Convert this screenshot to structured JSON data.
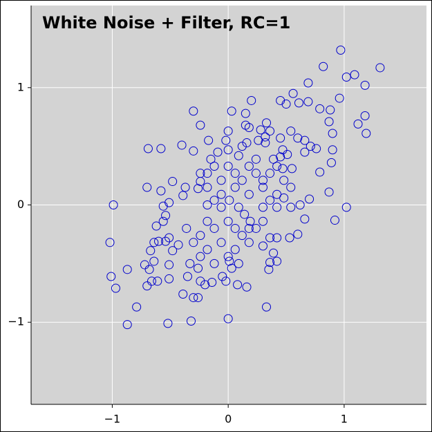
{
  "chart_data": {
    "type": "scatter",
    "title": "White Noise + Filter, RC=1",
    "color": "#0000cc",
    "grid": true,
    "xlim": [
      -1.7,
      1.71
    ],
    "ylim": [
      -1.7,
      1.7
    ],
    "xticks": [
      {
        "value": -1,
        "label": "−1"
      },
      0,
      1
    ],
    "yticks": [
      {
        "value": -1,
        "label": "−1"
      },
      0,
      1
    ],
    "x": [
      0.97,
      1.31,
      0.82,
      1.02,
      1.09,
      1.18,
      0.69,
      0.56,
      0.96,
      1.18,
      1.12,
      1.19,
      0.2,
      0.03,
      -0.3,
      0.15,
      -0.24,
      0.33,
      0.45,
      0.5,
      0.61,
      0.69,
      0.79,
      0.88,
      0.87,
      0.9,
      0.9,
      0.89,
      0.92,
      1.02,
      0.79,
      0.87,
      0.7,
      -0.69,
      -0.58,
      -0.99,
      -1.02,
      -1.01,
      -0.97,
      -0.87,
      -0.79,
      -0.87,
      -0.52,
      -0.32,
      0.0,
      0.33,
      -0.7,
      -0.4,
      -0.3,
      -0.17,
      -0.02,
      0.0,
      0.12,
      0.16,
      0.26,
      0.32,
      0.18,
      0.28,
      0.32,
      0.47,
      0.45,
      0.51,
      0.47,
      0.55,
      0.66,
      0.66,
      0.71,
      0.76,
      0.6,
      0.66,
      0.62,
      0.53,
      0.42,
      0.36,
      0.3,
      0.39,
      0.36,
      0.35,
      0.42,
      0.16,
      0.08,
      0.01,
      0.03,
      -0.02,
      -0.05,
      -0.14,
      -0.2,
      -0.24,
      -0.26,
      -0.35,
      -0.33,
      -0.7,
      -0.66,
      -0.61,
      -0.51,
      -0.68,
      -0.72,
      -0.64,
      -0.51,
      -0.39,
      -0.3,
      -0.26,
      -0.67,
      -0.64,
      -0.6,
      -0.54,
      -0.51,
      -0.43,
      -0.48,
      -0.62,
      -0.56,
      -0.54,
      -0.56,
      -0.51,
      -0.48,
      -0.58,
      -0.39,
      -0.37,
      -0.26,
      -0.24,
      -0.18,
      -0.12,
      -0.06,
      0.01,
      0.09,
      0.14,
      0.19,
      0.24,
      0.3,
      0.36,
      0.42,
      0.48,
      0.54,
      -0.18,
      -0.12,
      -0.24,
      -0.3,
      -0.36,
      0.0,
      0.06,
      0.12,
      0.18,
      -0.18,
      -0.12,
      -0.06,
      0.0,
      0.06,
      0.12,
      0.18,
      0.24,
      0.3,
      0.36,
      0.42,
      0.48,
      -0.18,
      -0.06,
      0.06,
      0.18,
      0.3,
      0.42,
      0.54,
      0.3,
      0.18,
      0.06,
      -0.06,
      -0.18,
      0.0,
      0.09,
      -0.12,
      -0.24,
      0.36,
      0.45,
      0.54,
      0.6,
      0.39,
      0.24,
      0.09,
      -0.09,
      -0.15,
      -0.24,
      0.0,
      0.15
    ],
    "values": [
      1.32,
      1.17,
      1.18,
      1.09,
      1.11,
      1.02,
      1.04,
      0.95,
      0.91,
      0.76,
      0.69,
      0.61,
      0.89,
      0.8,
      0.8,
      0.78,
      0.68,
      0.7,
      0.89,
      0.86,
      0.87,
      0.88,
      0.82,
      0.81,
      0.71,
      0.61,
      0.47,
      0.36,
      -0.13,
      -0.02,
      0.28,
      0.11,
      0.05,
      0.48,
      0.48,
      0.0,
      -0.32,
      -0.61,
      -0.71,
      -0.55,
      -0.87,
      -1.02,
      -1.01,
      -0.99,
      -0.97,
      -0.87,
      0.15,
      0.51,
      0.46,
      0.55,
      0.55,
      0.47,
      0.5,
      0.53,
      0.55,
      0.53,
      0.66,
      0.64,
      0.58,
      0.47,
      0.41,
      0.43,
      0.31,
      0.31,
      0.45,
      0.55,
      0.5,
      0.48,
      -0.25,
      -0.12,
      0.0,
      -0.28,
      -0.28,
      -0.28,
      -0.35,
      -0.41,
      -0.49,
      -0.55,
      -0.48,
      -0.7,
      -0.68,
      -0.48,
      -0.54,
      -0.65,
      -0.61,
      -0.66,
      -0.68,
      -0.65,
      -0.54,
      -0.61,
      -0.5,
      -0.69,
      -0.65,
      -0.65,
      -0.63,
      -0.55,
      -0.51,
      -0.48,
      -0.51,
      -0.76,
      -0.79,
      -0.79,
      -0.39,
      -0.32,
      -0.31,
      -0.31,
      -0.28,
      -0.34,
      -0.39,
      -0.18,
      -0.14,
      -0.09,
      -0.01,
      0.02,
      0.2,
      0.12,
      0.08,
      0.15,
      0.14,
      0.2,
      0.0,
      0.04,
      -0.02,
      0.04,
      -0.02,
      -0.08,
      -0.14,
      -0.2,
      -0.02,
      0.04,
      0.09,
      0.06,
      0.15,
      -0.14,
      -0.2,
      -0.26,
      -0.32,
      -0.2,
      -0.14,
      -0.2,
      -0.26,
      -0.2,
      0.27,
      0.33,
      0.21,
      0.33,
      0.27,
      0.21,
      0.33,
      0.27,
      0.21,
      0.27,
      0.33,
      0.21,
      0.15,
      0.09,
      0.15,
      0.09,
      0.15,
      -0.02,
      -0.02,
      -0.14,
      -0.32,
      -0.38,
      -0.32,
      -0.38,
      -0.44,
      -0.5,
      -0.5,
      -0.44,
      0.63,
      0.57,
      0.63,
      0.57,
      0.39,
      0.39,
      0.42,
      0.45,
      0.39,
      0.27,
      0.63,
      0.68
    ]
  }
}
